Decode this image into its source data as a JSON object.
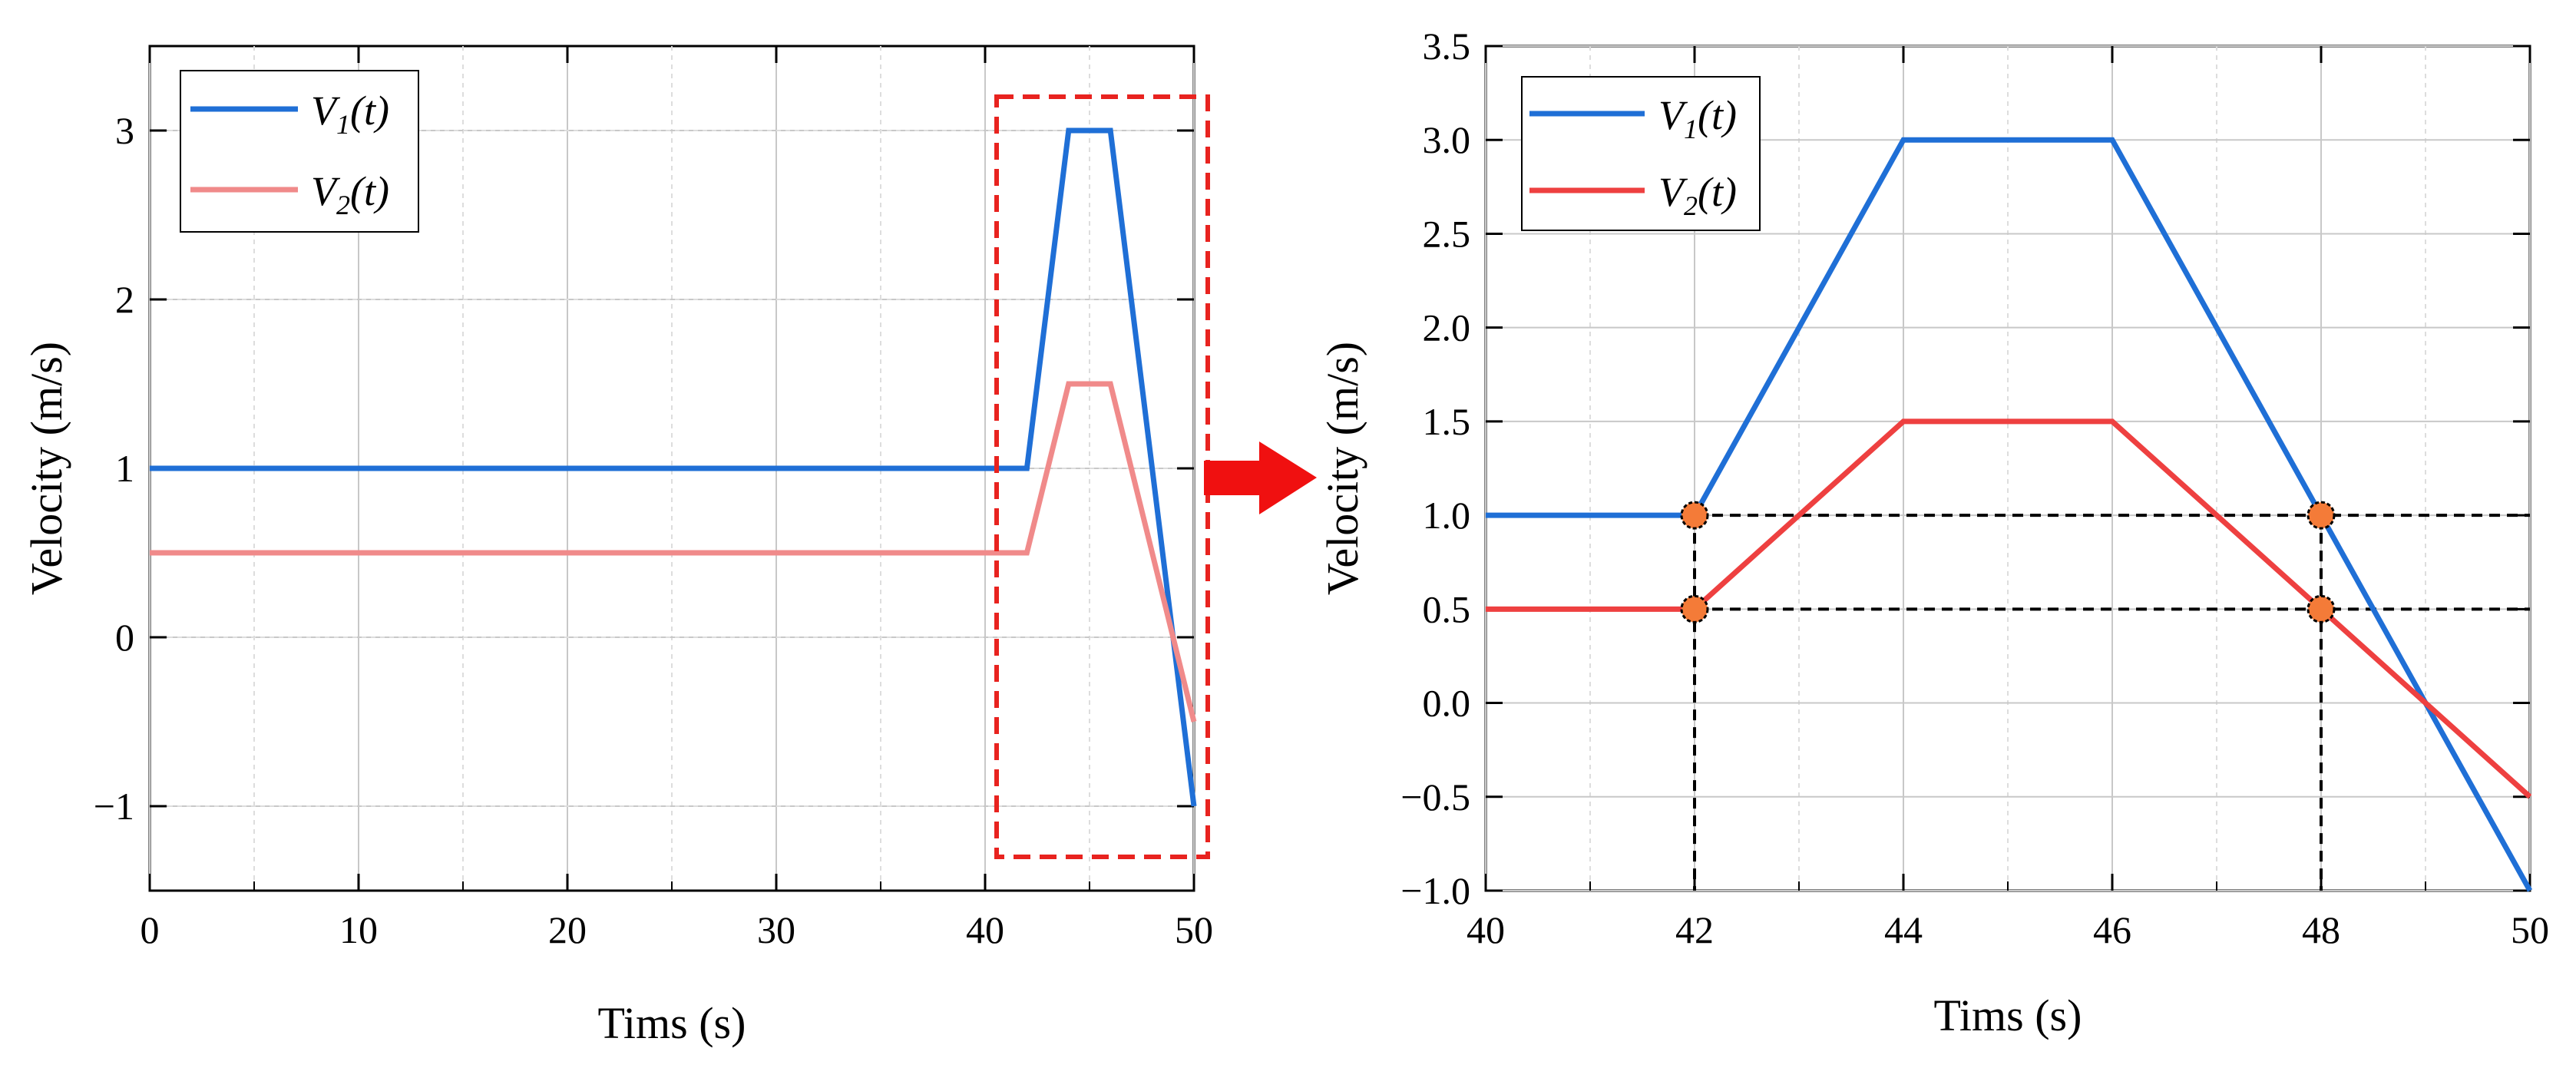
{
  "chart_data": [
    {
      "type": "line",
      "xlabel": "Tims (s)",
      "ylabel": "Velocity (m/s)",
      "xlim": [
        0,
        50
      ],
      "ylim": [
        -1.5,
        3.5
      ],
      "xticks": [
        0,
        10,
        20,
        30,
        40,
        50
      ],
      "xtick_labels": [
        "0",
        "10",
        "20",
        "30",
        "40",
        "50"
      ],
      "yticks": [
        -1,
        0,
        1,
        2,
        3
      ],
      "ytick_labels": [
        "−1",
        "0",
        "1",
        "2",
        "3"
      ],
      "grid": true,
      "legend_position": "top-left",
      "series": [
        {
          "name": "V1(t)",
          "base": "V",
          "sub": "1",
          "suffix": "(t)",
          "color": "#1f6fd6",
          "x": [
            0,
            42,
            44,
            46,
            50
          ],
          "y": [
            1,
            1,
            3,
            3,
            -1
          ]
        },
        {
          "name": "V2(t)",
          "base": "V",
          "sub": "2",
          "suffix": "(t)",
          "color": "#f08a8a",
          "x": [
            0,
            42,
            44,
            46,
            50
          ],
          "y": [
            0.5,
            0.5,
            1.5,
            1.5,
            -0.5
          ]
        }
      ],
      "annotations": [
        {
          "type": "zoom-box",
          "x_range": [
            40,
            50
          ],
          "y_range": [
            -1.3,
            3.2
          ],
          "color": "#e8231f"
        }
      ]
    },
    {
      "type": "line",
      "xlabel": "Tims (s)",
      "ylabel": "Velocity (m/s)",
      "xlim": [
        40,
        50
      ],
      "ylim": [
        -1.0,
        3.5
      ],
      "xticks": [
        40,
        42,
        44,
        46,
        48,
        50
      ],
      "xtick_labels": [
        "40",
        "42",
        "44",
        "46",
        "48",
        "50"
      ],
      "yticks": [
        -1.0,
        -0.5,
        0.0,
        0.5,
        1.0,
        1.5,
        2.0,
        2.5,
        3.0,
        3.5
      ],
      "ytick_labels": [
        "−1.0",
        "−0.5",
        "0.0",
        "0.5",
        "1.0",
        "1.5",
        "2.0",
        "2.5",
        "3.0",
        "3.5"
      ],
      "grid": true,
      "legend_position": "top-left",
      "series": [
        {
          "name": "V1(t)",
          "base": "V",
          "sub": "1",
          "suffix": "(t)",
          "color": "#1f6fd6",
          "x": [
            40,
            42,
            44,
            46,
            50
          ],
          "y": [
            1,
            1,
            3,
            3,
            -1
          ]
        },
        {
          "name": "V2(t)",
          "base": "V",
          "sub": "2",
          "suffix": "(t)",
          "color": "#ee4040",
          "x": [
            40,
            42,
            44,
            46,
            50
          ],
          "y": [
            0.5,
            0.5,
            1.5,
            1.5,
            -0.5
          ]
        }
      ],
      "markers": [
        {
          "x": 42,
          "y": 1.0
        },
        {
          "x": 42,
          "y": 0.5
        },
        {
          "x": 48,
          "y": 1.0
        },
        {
          "x": 48,
          "y": 0.5
        }
      ],
      "marker_color": "#f47b38",
      "guides": {
        "horizontal": [
          1.0,
          0.5
        ],
        "vertical": [
          42,
          48
        ]
      }
    }
  ],
  "colors": {
    "arrow": "#f01010",
    "zoom_box": "#e8231f"
  }
}
